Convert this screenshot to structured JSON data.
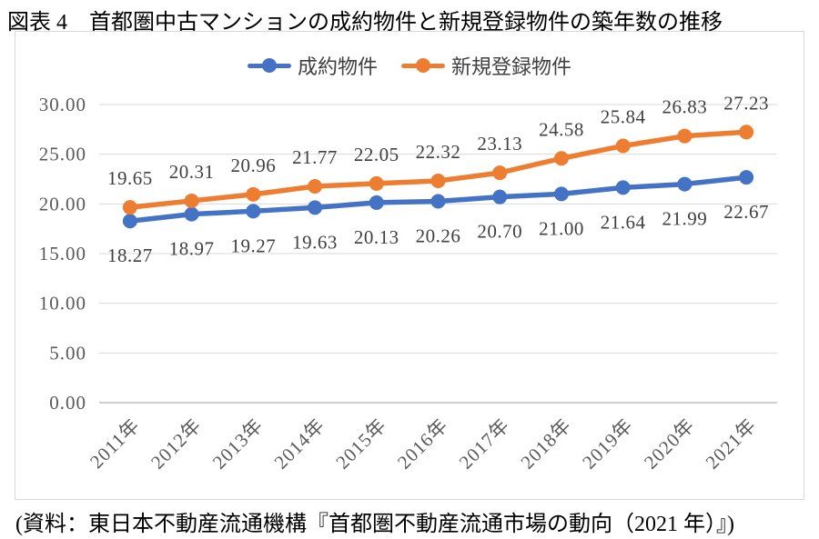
{
  "title": "図表 4　首都圏中古マンションの成約物件と新規登録物件の築年数の推移",
  "source": "(資料：東日本不動産流通機構『首都圏不動産流通市場の動向（2021 年）』)",
  "chart_data": {
    "type": "line",
    "title": "図表 4　首都圏中古マンションの成約物件と新規登録物件の築年数の推移",
    "categories": [
      "2011年",
      "2012年",
      "2013年",
      "2014年",
      "2015年",
      "2016年",
      "2017年",
      "2018年",
      "2019年",
      "2020年",
      "2021年"
    ],
    "series": [
      {
        "name": "成約物件",
        "color": "#4472C4",
        "label_position": "below",
        "values": [
          18.27,
          18.97,
          19.27,
          19.63,
          20.13,
          20.26,
          20.7,
          21.0,
          21.64,
          21.99,
          22.67
        ]
      },
      {
        "name": "新規登録物件",
        "color": "#ED7D31",
        "label_position": "above",
        "values": [
          19.65,
          20.31,
          20.96,
          21.77,
          22.05,
          22.32,
          23.13,
          24.58,
          25.84,
          26.83,
          27.23
        ]
      }
    ],
    "xlabel": "",
    "ylabel": "",
    "ylim": [
      0,
      30
    ],
    "ytick_step": 5,
    "ytick_decimals": 2,
    "grid": true,
    "legend_position": "top",
    "x_label_rotation": -45,
    "colors": {
      "grid": "#D9D9D9",
      "axis_line": "#BFBFBF",
      "axis_label": "#595959",
      "data_label": "#404040",
      "chart_border": "#D9D9D9"
    }
  }
}
